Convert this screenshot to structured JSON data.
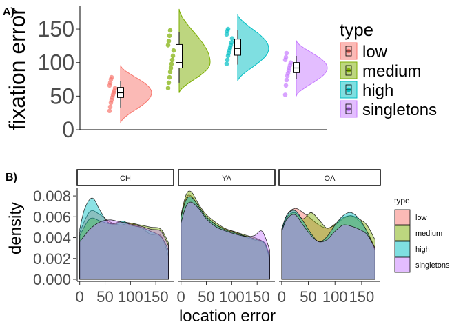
{
  "chart_data": [
    {
      "panel_label": "A)",
      "type": "raincloud",
      "ylabel": "fixation error",
      "yticks": [
        0,
        50,
        100,
        150
      ],
      "ylim": [
        0,
        185
      ],
      "legend": {
        "title": "type",
        "placement": "right"
      },
      "series": [
        {
          "name": "low",
          "color": "#F8766D",
          "median": 55,
          "q1": 48,
          "q3": 63,
          "whisker_low": 33,
          "whisker_high": 72,
          "points": [
            28,
            34,
            40,
            44,
            48,
            52,
            55,
            58,
            62,
            66,
            70,
            75,
            78
          ],
          "density_max": 96,
          "density_min": 10
        },
        {
          "name": "medium",
          "color": "#7CAE00",
          "median": 100,
          "q1": 92,
          "q3": 127,
          "whisker_low": 70,
          "whisker_high": 145,
          "points": [
            62,
            70,
            78,
            86,
            92,
            98,
            104,
            110,
            118,
            126,
            132,
            140,
            148
          ],
          "density_max": 180,
          "density_min": 55
        },
        {
          "name": "high",
          "color": "#00BFC4",
          "median": 121,
          "q1": 111,
          "q3": 135,
          "whisker_low": 97,
          "whisker_high": 148,
          "points": [
            98,
            104,
            110,
            114,
            118,
            122,
            126,
            130,
            136,
            142,
            147,
            150
          ],
          "density_max": 172,
          "density_min": 72
        },
        {
          "name": "singletons",
          "color": "#C77CFF",
          "median": 92,
          "q1": 85,
          "q3": 100,
          "whisker_low": 75,
          "whisker_high": 110,
          "points": [
            52,
            66,
            74,
            80,
            84,
            88,
            92,
            96,
            100,
            104,
            108,
            114
          ],
          "density_max": 133,
          "density_min": 50
        }
      ]
    },
    {
      "panel_label": "B)",
      "type": "area",
      "xlabel": "location error",
      "ylabel": "density",
      "xticks": [
        "0",
        "50",
        "100",
        "150"
      ],
      "yticks": [
        "0.000",
        "0.002",
        "0.004",
        "0.006",
        "0.008"
      ],
      "xlim": [
        -5,
        185
      ],
      "ylim": [
        -0.0002,
        0.0088
      ],
      "legend": {
        "title": "type",
        "placement": "right"
      },
      "facets": [
        {
          "name": "CH",
          "series": [
            {
              "name": "low",
              "x": [
                0,
                20,
                40,
                60,
                80,
                100,
                120,
                140,
                160,
                175
              ],
              "y": [
                0.0045,
                0.0065,
                0.0062,
                0.0055,
                0.0052,
                0.0054,
                0.005,
                0.0043,
                0.0042,
                0.0022
              ]
            },
            {
              "name": "medium",
              "x": [
                0,
                20,
                40,
                60,
                80,
                100,
                120,
                140,
                160,
                175
              ],
              "y": [
                0.0042,
                0.0058,
                0.0056,
                0.0053,
                0.0055,
                0.0054,
                0.0052,
                0.005,
                0.0048,
                0.0035
              ]
            },
            {
              "name": "high",
              "x": [
                0,
                10,
                25,
                40,
                55,
                70,
                85,
                100,
                120,
                140,
                160,
                175
              ],
              "y": [
                0.0048,
                0.0068,
                0.0078,
                0.0066,
                0.0055,
                0.0053,
                0.0056,
                0.0052,
                0.005,
                0.0046,
                0.0041,
                0.0028
              ]
            },
            {
              "name": "singletons",
              "x": [
                0,
                20,
                40,
                60,
                80,
                100,
                120,
                140,
                160,
                175
              ],
              "y": [
                0.0036,
                0.0048,
                0.0055,
                0.0057,
                0.0055,
                0.0053,
                0.0051,
                0.0048,
                0.0046,
                0.0032
              ]
            }
          ]
        },
        {
          "name": "YA",
          "series": [
            {
              "name": "low",
              "x": [
                0,
                10,
                20,
                35,
                50,
                70,
                90,
                110,
                130,
                150,
                165,
                175
              ],
              "y": [
                0.006,
                0.0078,
                0.008,
                0.007,
                0.006,
                0.0052,
                0.0048,
                0.0045,
                0.004,
                0.0037,
                0.0034,
                0.0018
              ]
            },
            {
              "name": "medium",
              "x": [
                0,
                10,
                20,
                35,
                50,
                70,
                90,
                110,
                130,
                150,
                165,
                175
              ],
              "y": [
                0.0062,
                0.0081,
                0.0084,
                0.0072,
                0.0062,
                0.0054,
                0.0048,
                0.0045,
                0.0042,
                0.0039,
                0.0034,
                0.002
              ]
            },
            {
              "name": "high",
              "x": [
                0,
                10,
                20,
                35,
                50,
                70,
                90,
                110,
                130,
                150,
                165,
                175
              ],
              "y": [
                0.006,
                0.0076,
                0.0079,
                0.007,
                0.006,
                0.0052,
                0.0047,
                0.0044,
                0.0041,
                0.0038,
                0.0035,
                0.0022
              ]
            },
            {
              "name": "singletons",
              "x": [
                0,
                10,
                20,
                35,
                50,
                70,
                90,
                110,
                130,
                145,
                160,
                175
              ],
              "y": [
                0.0054,
                0.007,
                0.0074,
                0.0068,
                0.0058,
                0.005,
                0.0046,
                0.0043,
                0.0041,
                0.0042,
                0.0046,
                0.0028
              ]
            }
          ]
        },
        {
          "name": "OA",
          "series": [
            {
              "name": "low",
              "x": [
                0,
                10,
                25,
                40,
                55,
                70,
                85,
                100,
                115,
                130,
                145,
                160,
                175
              ],
              "y": [
                0.0048,
                0.0062,
                0.0068,
                0.0064,
                0.0058,
                0.0052,
                0.0049,
                0.0052,
                0.0058,
                0.0061,
                0.0056,
                0.0046,
                0.003
              ]
            },
            {
              "name": "medium",
              "x": [
                0,
                10,
                25,
                40,
                55,
                70,
                85,
                100,
                115,
                130,
                145,
                160,
                175
              ],
              "y": [
                0.0046,
                0.006,
                0.0064,
                0.0058,
                0.0064,
                0.0057,
                0.0049,
                0.0053,
                0.0059,
                0.0061,
                0.0058,
                0.0052,
                0.0038
              ]
            },
            {
              "name": "high",
              "x": [
                0,
                10,
                25,
                40,
                55,
                70,
                85,
                100,
                115,
                130,
                145,
                160,
                175
              ],
              "y": [
                0.0048,
                0.0062,
                0.0066,
                0.0056,
                0.0044,
                0.0036,
                0.0041,
                0.0052,
                0.0061,
                0.0064,
                0.0058,
                0.0046,
                0.0028
              ]
            },
            {
              "name": "singletons",
              "x": [
                0,
                10,
                25,
                40,
                55,
                70,
                85,
                100,
                115,
                130,
                145,
                160,
                175
              ],
              "y": [
                0.0046,
                0.0058,
                0.0062,
                0.0052,
                0.0042,
                0.0036,
                0.0038,
                0.0046,
                0.0052,
                0.0051,
                0.0048,
                0.0043,
                0.003
              ]
            }
          ]
        }
      ],
      "series_colors": {
        "low": "#F8766D",
        "medium": "#7CAE00",
        "high": "#00BFC4",
        "singletons": "#C77CFF"
      }
    }
  ]
}
